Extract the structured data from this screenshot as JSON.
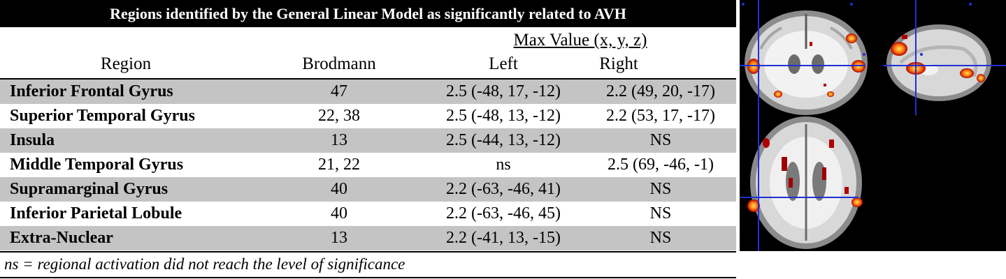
{
  "table": {
    "title": "Regions identified by the General Linear Model as significantly related to AVH",
    "header": {
      "max_value": "Max Value (x, y, z)",
      "region": "Region",
      "brodmann": "Brodmann",
      "left": "Left",
      "right": "Right"
    },
    "rows": [
      {
        "region": "Inferior Frontal Gyrus",
        "brodmann": "47",
        "left": "2.5 (-48, 17, -12)",
        "right": "2.2 (49, 20, -17)",
        "shaded": true
      },
      {
        "region": "Superior Temporal Gyrus",
        "brodmann": "22, 38",
        "left": "2.5 (-48, 13, -12)",
        "right": "2.2 (53, 17, -17)",
        "shaded": false
      },
      {
        "region": "Insula",
        "brodmann": "13",
        "left": "2.5 (-44, 13, -12)",
        "right": "NS",
        "shaded": true
      },
      {
        "region": "Middle Temporal Gyrus",
        "brodmann": "21, 22",
        "left": "ns",
        "right": "2.5 (69, -46, -1)",
        "shaded": false
      },
      {
        "region": "Supramarginal Gyrus",
        "brodmann": "40",
        "left": "2.2 (-63, -46, 41)",
        "right": "NS",
        "shaded": true
      },
      {
        "region": "Inferior Parietal Lobule",
        "brodmann": "40",
        "left": "2.2 (-63, -46, 45)",
        "right": "NS",
        "shaded": false
      },
      {
        "region": "Extra-Nuclear",
        "brodmann": "13",
        "left": "2.2 (-41, 13, -15)",
        "right": "NS",
        "shaded": true
      }
    ],
    "footnote": "ns = regional activation did not reach the level of significance"
  },
  "brain_figure": {
    "views": [
      "coronal",
      "sagittal",
      "axial"
    ],
    "colors": {
      "background": "#000000",
      "crosshair": "#1f2fd6",
      "activation_low": "#b00000",
      "activation_high": "#ffd040"
    }
  }
}
